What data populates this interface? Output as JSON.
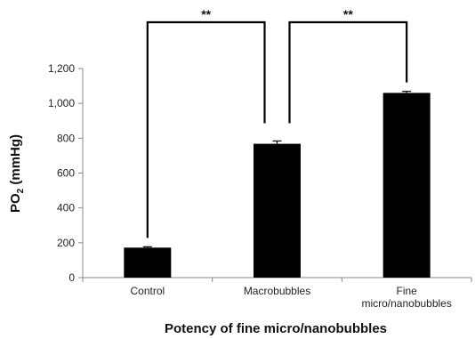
{
  "chart_data": {
    "type": "bar",
    "categories": [
      [
        "Control"
      ],
      [
        "Macrobubbles"
      ],
      [
        "Fine",
        "micro/nanobubbles"
      ]
    ],
    "values": [
      172,
      768,
      1060
    ],
    "errors": [
      5,
      16,
      9
    ],
    "ylim": [
      0,
      1200
    ],
    "yticks": [
      0,
      200,
      400,
      600,
      800,
      1000,
      1200
    ],
    "ytick_labels": [
      "0",
      "200",
      "400",
      "600",
      "800",
      "1,000",
      "1,200"
    ],
    "ylabel_main": "PO",
    "ylabel_sub": "2",
    "ylabel_rest": " (mmHg)",
    "xlabel": "Potency of fine micro/nanobubbles",
    "bar_color": "#000000",
    "grid": false,
    "significance": [
      {
        "from": 0,
        "to": 1,
        "label": "**"
      },
      {
        "from": 1,
        "to": 2,
        "label": "**"
      }
    ]
  }
}
